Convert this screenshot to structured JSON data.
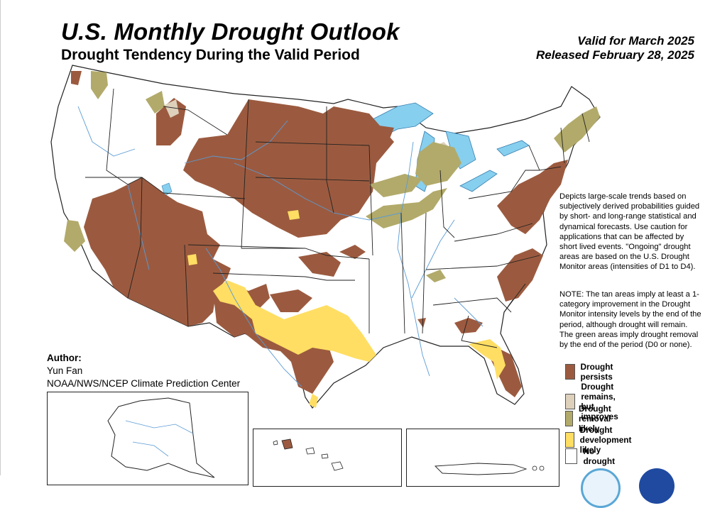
{
  "header": {
    "title": "U.S. Monthly Drought Outlook",
    "subtitle": "Drought Tendency During the Valid Period",
    "valid_for": "Valid for March 2025",
    "released": "Released February 28, 2025"
  },
  "description": "Depicts large-scale trends based on subjectively derived probabilities guided by short- and long-range statistical and dynamical forecasts. Use caution for applications that can be affected by short lived events. \"Ongoing\" drought areas are based on the U.S. Drought Monitor areas (intensities of D1 to D4).",
  "note": "NOTE: The tan areas imply at least a 1-category improvement in the Drought Monitor intensity levels by the end of the period, although drought will remain. The green areas imply drought removal by the end of the period (D0 or none).",
  "author": {
    "label": "Author:",
    "name": "Yun Fan",
    "org": "NOAA/NWS/NCEP Climate Prediction Center"
  },
  "legend": [
    {
      "label_line1": "Drought persists",
      "label_line2": "",
      "color": "#9b5a3f"
    },
    {
      "label_line1": "Drought remains,",
      "label_line2": "but improves",
      "color": "#ddd1bc"
    },
    {
      "label_line1": "Drought removal likely",
      "label_line2": "",
      "color": "#b2aa6a"
    },
    {
      "label_line1": "Drought development likely",
      "label_line2": "",
      "color": "#ffde63"
    },
    {
      "label_line1": "No drought",
      "label_line2": "",
      "color": "#ffffff"
    }
  ],
  "colors": {
    "persists": "#9b5a3f",
    "improves": "#ddd1bc",
    "removal": "#b2aa6a",
    "development": "#ffde63",
    "water": "#87cfee",
    "river": "#5a9bd5",
    "border": "#222222"
  }
}
